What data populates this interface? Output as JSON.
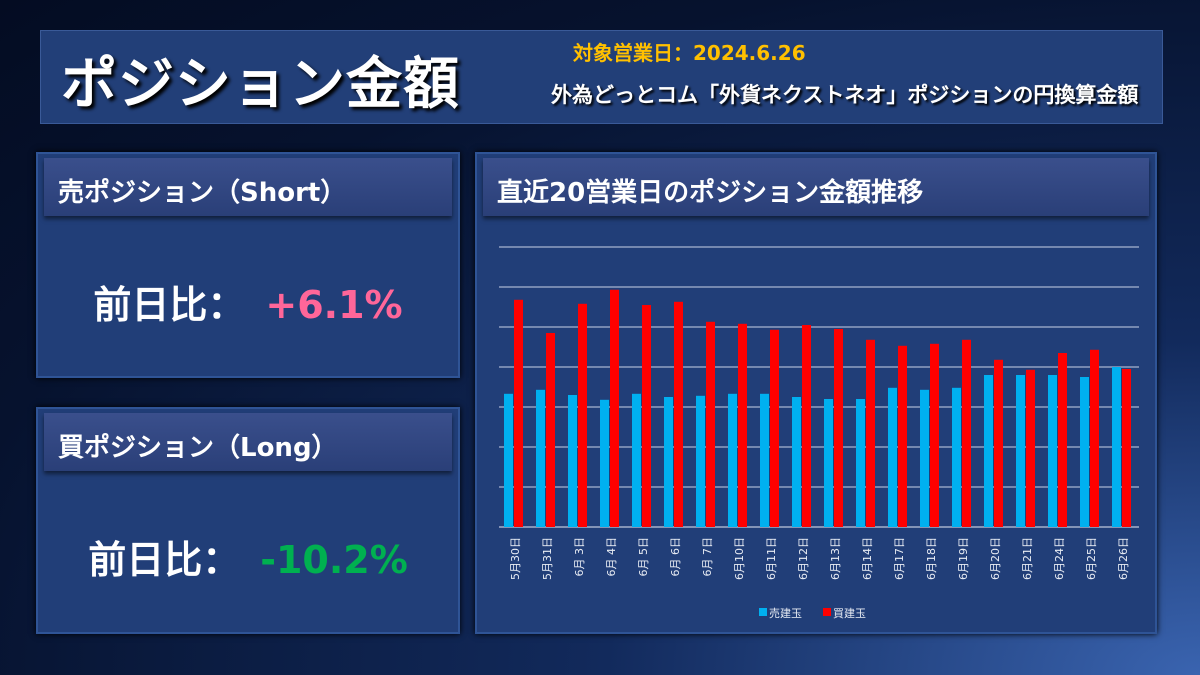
{
  "header": {
    "title": "ポジション金額",
    "date_label": "対象営業日：",
    "date": "2024.6.26",
    "subtitle": "外為どっとコム「外貨ネクストネオ」ポジションの円換算金額"
  },
  "short": {
    "title": "売ポジション（Short）",
    "label": "前日比：",
    "value": "+6.1%",
    "color": "#ff6699"
  },
  "long": {
    "title": "買ポジション（Long）",
    "label": "前日比：",
    "value": "-10.2%",
    "color": "#00b050"
  },
  "chart_panel": {
    "title": "直近20営業日のポジション金額推移"
  },
  "chart_data": {
    "type": "bar",
    "title": "直近20営業日のポジション金額推移",
    "categories": [
      "5月30日",
      "5月31日",
      "6月 3日",
      "6月 4日",
      "6月 5日",
      "6月 6日",
      "6月 7日",
      "6月10日",
      "6月11日",
      "6月12日",
      "6月13日",
      "6月14日",
      "6月17日",
      "6月18日",
      "6月19日",
      "6月20日",
      "6月21日",
      "6月24日",
      "6月25日",
      "6月26日"
    ],
    "series": [
      {
        "name": "売建玉",
        "color": "#00b0f0",
        "values": [
          3.33,
          3.43,
          3.3,
          3.18,
          3.33,
          3.25,
          3.28,
          3.33,
          3.33,
          3.25,
          3.2,
          3.2,
          3.48,
          3.43,
          3.48,
          3.8,
          3.8,
          3.8,
          3.75,
          4.0
        ]
      },
      {
        "name": "買建玉",
        "color": "#ff0000",
        "values": [
          5.68,
          4.85,
          5.58,
          5.93,
          5.55,
          5.63,
          5.13,
          5.08,
          4.93,
          5.05,
          4.95,
          4.68,
          4.53,
          4.58,
          4.68,
          4.18,
          3.93,
          4.35,
          4.43,
          3.95
        ]
      }
    ],
    "ylim": [
      0,
      7
    ],
    "grid": true,
    "ytick_labels": false,
    "legend": "bottom",
    "note": "Y axis unlabeled; values in relative gridline units"
  }
}
